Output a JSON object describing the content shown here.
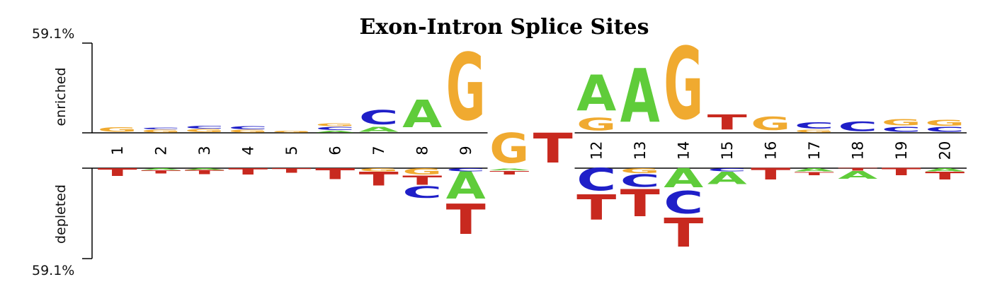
{
  "chart_data": {
    "type": "sequence-logo",
    "title": "Exon-Intron Splice Sites",
    "enriched_label": "enriched",
    "depleted_label": "depleted",
    "ymax_label": "59.1%",
    "ymin_label": "59.1%",
    "ylim_percent": [
      -59.1,
      59.1
    ],
    "colors": {
      "A": "#5fcc3a",
      "C": "#1f1fc8",
      "G": "#f0aa30",
      "T": "#c8291f"
    },
    "columns": [
      {
        "position": "1",
        "enriched": [
          {
            "base": "G",
            "value": 3.5
          }
        ],
        "depleted": [
          {
            "base": "T",
            "value": 6
          }
        ]
      },
      {
        "position": "2",
        "enriched": [
          {
            "base": "G",
            "value": 2
          },
          {
            "base": "C",
            "value": 1.5
          }
        ],
        "depleted": [
          {
            "base": "A",
            "value": 1.5
          },
          {
            "base": "T",
            "value": 2.5
          }
        ]
      },
      {
        "position": "3",
        "enriched": [
          {
            "base": "G",
            "value": 2.5
          },
          {
            "base": "C",
            "value": 2
          }
        ],
        "depleted": [
          {
            "base": "A",
            "value": 1.5
          },
          {
            "base": "T",
            "value": 3
          }
        ]
      },
      {
        "position": "4",
        "enriched": [
          {
            "base": "G",
            "value": 2
          },
          {
            "base": "C",
            "value": 2.5
          }
        ],
        "depleted": [
          {
            "base": "T",
            "value": 5
          }
        ]
      },
      {
        "position": "5",
        "enriched": [
          {
            "base": "G",
            "value": 1.5
          }
        ],
        "depleted": [
          {
            "base": "T",
            "value": 3.5
          }
        ]
      },
      {
        "position": "6",
        "enriched": [
          {
            "base": "A",
            "value": 1.5
          },
          {
            "base": "C",
            "value": 2.5
          },
          {
            "base": "G",
            "value": 2
          }
        ],
        "depleted": [
          {
            "base": "T",
            "value": 8.5
          }
        ]
      },
      {
        "position": "7",
        "enriched": [
          {
            "base": "A",
            "value": 4
          },
          {
            "base": "C",
            "value": 11
          }
        ],
        "depleted": [
          {
            "base": "G",
            "value": 2.5
          },
          {
            "base": "T",
            "value": 10.5
          }
        ]
      },
      {
        "position": "8",
        "enriched": [
          {
            "base": "A",
            "value": 21.5
          }
        ],
        "depleted": [
          {
            "base": "G",
            "value": 5
          },
          {
            "base": "T",
            "value": 7
          },
          {
            "base": "C",
            "value": 9
          }
        ]
      },
      {
        "position": "9",
        "enriched": [
          {
            "base": "G",
            "value": 52.5
          }
        ],
        "depleted": [
          {
            "base": "C",
            "value": 2.5
          },
          {
            "base": "A",
            "value": 21
          },
          {
            "base": "T",
            "value": 23.5
          }
        ]
      },
      {
        "position": "10",
        "enriched": [
          {
            "base": "T",
            "value": 3
          },
          {
            "base": "A",
            "value": 1.5
          },
          {
            "base": "G",
            "value": 23.5
          }
        ],
        "depleted": []
      },
      {
        "position": "11",
        "enriched": [
          {
            "base": "T",
            "value": 23.5
          }
        ],
        "depleted": []
      },
      {
        "position": "12",
        "enriched": [
          {
            "base": "G",
            "value": 10
          },
          {
            "base": "A",
            "value": 28
          }
        ],
        "depleted": [
          {
            "base": "C",
            "value": 17.5
          },
          {
            "base": "T",
            "value": 19.5
          }
        ]
      },
      {
        "position": "13",
        "enriched": [
          {
            "base": "A",
            "value": 42
          }
        ],
        "depleted": [
          {
            "base": "G",
            "value": 4
          },
          {
            "base": "C",
            "value": 10
          },
          {
            "base": "T",
            "value": 21
          }
        ]
      },
      {
        "position": "14",
        "enriched": [
          {
            "base": "G",
            "value": 56.5
          }
        ],
        "depleted": [
          {
            "base": "A",
            "value": 15
          },
          {
            "base": "C",
            "value": 17.5
          },
          {
            "base": "T",
            "value": 22.5
          }
        ]
      },
      {
        "position": "15",
        "enriched": [
          {
            "base": "T",
            "value": 12
          }
        ],
        "depleted": [
          {
            "base": "C",
            "value": 2.5
          },
          {
            "base": "A",
            "value": 9.5
          }
        ]
      },
      {
        "position": "16",
        "enriched": [
          {
            "base": "G",
            "value": 10.5
          }
        ],
        "depleted": [
          {
            "base": "T",
            "value": 9
          }
        ]
      },
      {
        "position": "17",
        "enriched": [
          {
            "base": "G",
            "value": 2
          },
          {
            "base": "C",
            "value": 5
          }
        ],
        "depleted": [
          {
            "base": "A",
            "value": 2.5
          },
          {
            "base": "T",
            "value": 2.5
          }
        ]
      },
      {
        "position": "18",
        "enriched": [
          {
            "base": "C",
            "value": 7.5
          }
        ],
        "depleted": [
          {
            "base": "T",
            "value": 2
          },
          {
            "base": "A",
            "value": 6
          }
        ]
      },
      {
        "position": "19",
        "enriched": [
          {
            "base": "C",
            "value": 4
          },
          {
            "base": "G",
            "value": 5
          }
        ],
        "depleted": [
          {
            "base": "T",
            "value": 5.5
          }
        ]
      },
      {
        "position": "20",
        "enriched": [
          {
            "base": "C",
            "value": 4
          },
          {
            "base": "G",
            "value": 4.5
          }
        ],
        "depleted": [
          {
            "base": "A",
            "value": 2.5
          },
          {
            "base": "T",
            "value": 6
          }
        ]
      }
    ]
  }
}
